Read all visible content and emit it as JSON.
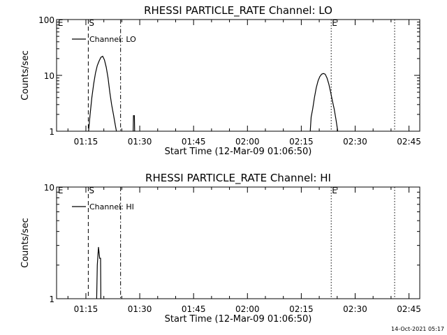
{
  "footer_timestamp": "14-Oct-2021 05:17",
  "chart_data": [
    {
      "type": "line",
      "title": "RHESSI PARTICLE_RATE Channel: LO",
      "xlabel": "Start Time (12-Mar-09 01:06:50)",
      "ylabel": "Counts/sec",
      "y_scale": "log",
      "ylim": [
        1,
        100
      ],
      "y_ticks": [
        {
          "value": 1,
          "label": "1"
        },
        {
          "value": 10,
          "label": "10"
        },
        {
          "value": 100,
          "label": "100"
        }
      ],
      "xlim": [
        "01:06:50",
        "02:48:00"
      ],
      "x_ticks": [
        "01:15",
        "01:30",
        "01:45",
        "02:00",
        "02:15",
        "02:30",
        "02:45"
      ],
      "grid": false,
      "legend_position": "top-left",
      "series": [
        {
          "name": "Channel: LO",
          "segments": [
            [
              [
                "01:15:45",
                1
              ],
              [
                "01:16:10",
                2
              ],
              [
                "01:16:40",
                4
              ],
              [
                "01:17:10",
                7
              ],
              [
                "01:17:40",
                11
              ],
              [
                "01:18:10",
                15
              ],
              [
                "01:18:40",
                18
              ],
              [
                "01:19:10",
                21
              ],
              [
                "01:19:40",
                22
              ],
              [
                "01:20:10",
                19
              ],
              [
                "01:20:40",
                14
              ],
              [
                "01:21:10",
                9
              ],
              [
                "01:21:40",
                5
              ],
              [
                "01:22:10",
                3
              ],
              [
                "01:22:40",
                2
              ],
              [
                "01:23:10",
                1.3
              ],
              [
                "01:23:30",
                1
              ]
            ],
            [
              [
                "01:28:10",
                1
              ],
              [
                "01:28:15",
                1.9
              ],
              [
                "01:28:30",
                1.9
              ],
              [
                "01:28:35",
                1
              ]
            ],
            [
              [
                "02:17:30",
                1
              ],
              [
                "02:17:45",
                1.8
              ],
              [
                "02:18:10",
                2.5
              ],
              [
                "02:18:40",
                4
              ],
              [
                "02:19:10",
                6
              ],
              [
                "02:19:40",
                8
              ],
              [
                "02:20:10",
                9.5
              ],
              [
                "02:20:40",
                10.5
              ],
              [
                "02:21:10",
                10.8
              ],
              [
                "02:21:40",
                10.5
              ],
              [
                "02:22:10",
                9
              ],
              [
                "02:22:40",
                7
              ],
              [
                "02:23:10",
                5
              ],
              [
                "02:23:40",
                3.5
              ],
              [
                "02:24:10",
                2.5
              ],
              [
                "02:24:40",
                1.6
              ],
              [
                "02:25:10",
                1
              ]
            ]
          ]
        }
      ],
      "markers": [
        {
          "time": "01:07:00",
          "label": "E",
          "style": "none"
        },
        {
          "time": "01:15:40",
          "label": "S",
          "style": "dashed"
        },
        {
          "time": "01:24:40",
          "label": "",
          "style": "dashdot"
        },
        {
          "time": "02:23:20",
          "label": "E",
          "style": "dotted"
        },
        {
          "time": "02:41:00",
          "label": "",
          "style": "dotted"
        }
      ]
    },
    {
      "type": "line",
      "title": "RHESSI PARTICLE_RATE Channel: HI",
      "xlabel": "Start Time (12-Mar-09 01:06:50)",
      "ylabel": "Counts/sec",
      "y_scale": "log",
      "ylim": [
        1,
        10
      ],
      "y_ticks": [
        {
          "value": 1,
          "label": "1"
        },
        {
          "value": 10,
          "label": "10"
        }
      ],
      "xlim": [
        "01:06:50",
        "02:48:00"
      ],
      "x_ticks": [
        "01:15",
        "01:30",
        "01:45",
        "02:00",
        "02:15",
        "02:30",
        "02:45"
      ],
      "grid": false,
      "legend_position": "top-left",
      "series": [
        {
          "name": "Channel: HI",
          "segments": [
            [
              [
                "01:18:00",
                1
              ],
              [
                "01:18:10",
                2
              ],
              [
                "01:18:30",
                2.9
              ],
              [
                "01:18:50",
                2.3
              ],
              [
                "01:19:05",
                2.3
              ],
              [
                "01:19:10",
                1
              ]
            ]
          ]
        }
      ],
      "markers": [
        {
          "time": "01:07:00",
          "label": "E",
          "style": "none"
        },
        {
          "time": "01:15:40",
          "label": "S",
          "style": "dashed"
        },
        {
          "time": "01:24:40",
          "label": "",
          "style": "dashdot"
        },
        {
          "time": "02:23:20",
          "label": "E",
          "style": "dotted"
        },
        {
          "time": "02:41:00",
          "label": "",
          "style": "dotted"
        }
      ]
    }
  ]
}
